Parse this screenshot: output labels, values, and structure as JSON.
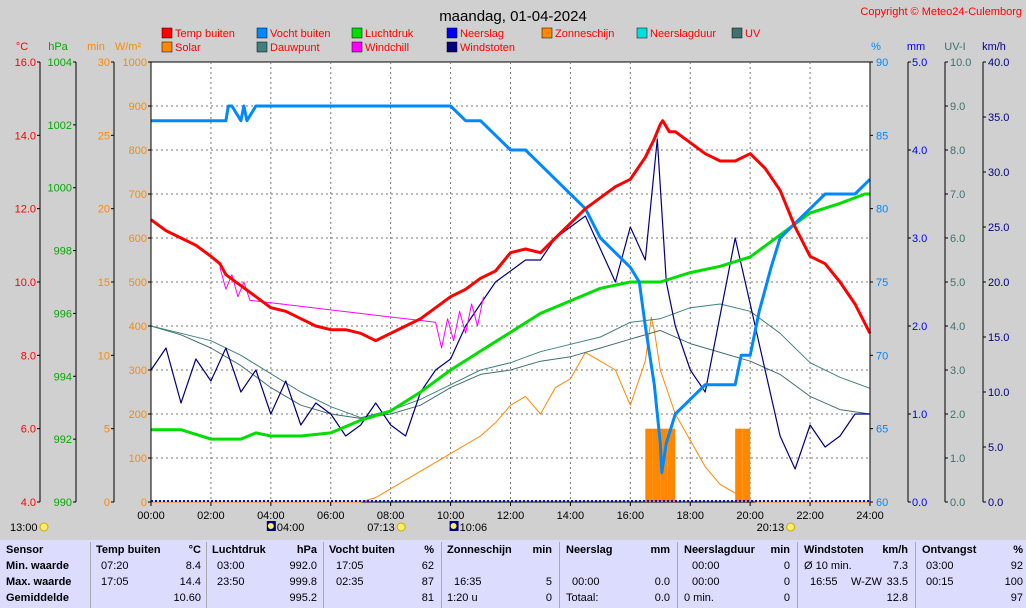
{
  "title": "maandag, 01-04-2024",
  "copyright": "Copyright © Meteo24-Culemborg",
  "colors": {
    "temp": "#ff0000",
    "vocht": "#0088ff",
    "luchtdruk": "#00dd00",
    "neerslag": "#0000ff",
    "zonneschijn": "#ff8800",
    "neerslagduur": "#00e0e0",
    "uv": "#407070",
    "solar": "#ff8800",
    "dauwpunt": "#408080",
    "windchill": "#ff00ff",
    "windstoten": "#000080"
  },
  "legend": [
    {
      "label": "Temp buiten",
      "color": "#ff0000"
    },
    {
      "label": "Vocht buiten",
      "color": "#0088ff"
    },
    {
      "label": "Luchtdruk",
      "color": "#00dd00"
    },
    {
      "label": "Neerslag",
      "color": "#0000ff"
    },
    {
      "label": "Zonneschijn",
      "color": "#ff8800"
    },
    {
      "label": "Neerslagduur",
      "color": "#00e0e0"
    },
    {
      "label": "UV",
      "color": "#407070"
    },
    {
      "label": "Solar",
      "color": "#ff8800"
    },
    {
      "label": "Dauwpunt",
      "color": "#408080"
    },
    {
      "label": "Windchill",
      "color": "#ff00ff"
    },
    {
      "label": "Windstoten",
      "color": "#000080"
    }
  ],
  "axes_left": [
    {
      "unit": "°C",
      "color": "#ff0000",
      "ticks": [
        "16.0",
        "14.0",
        "12.0",
        "10.0",
        "8.0",
        "6.0",
        "4.0"
      ]
    },
    {
      "unit": "hPa",
      "color": "#00aa00",
      "ticks": [
        "1004",
        "1002",
        "1000",
        "998",
        "996",
        "994",
        "992",
        "990"
      ]
    },
    {
      "unit": "min",
      "color": "#ff8800",
      "ticks": [
        "30",
        "25",
        "20",
        "15",
        "10",
        "5",
        "0"
      ]
    },
    {
      "unit": "W/m²",
      "color": "#ff8800",
      "ticks": [
        "1000",
        "900",
        "800",
        "700",
        "600",
        "500",
        "400",
        "300",
        "200",
        "100",
        "0"
      ]
    }
  ],
  "axes_right": [
    {
      "unit": "%",
      "color": "#0088ff",
      "ticks": [
        "90",
        "85",
        "80",
        "75",
        "70",
        "65",
        "60"
      ]
    },
    {
      "unit": "mm",
      "color": "#0000ff",
      "ticks": [
        "5.0",
        "4.0",
        "3.0",
        "2.0",
        "1.0",
        "0.0"
      ]
    },
    {
      "unit": "UV-I",
      "color": "#407070",
      "ticks": [
        "10.0",
        "9.0",
        "8.0",
        "7.0",
        "6.0",
        "5.0",
        "4.0",
        "3.0",
        "2.0",
        "1.0",
        "0.0"
      ]
    },
    {
      "unit": "km/h",
      "color": "#000080",
      "ticks": [
        "40.0",
        "35.0",
        "30.0",
        "25.0",
        "20.0",
        "15.0",
        "10.0",
        "5.0",
        "0.0"
      ]
    }
  ],
  "x_ticks": [
    "00:00",
    "02:00",
    "04:00",
    "06:00",
    "08:00",
    "10:00",
    "12:00",
    "14:00",
    "16:00",
    "18:00",
    "20:00",
    "22:00",
    "24:00"
  ],
  "sun_events": [
    {
      "time": "13:00",
      "kind": "moonset"
    },
    {
      "time": "04:00",
      "kind": "moonrise"
    },
    {
      "time": "07:13",
      "kind": "sunrise"
    },
    {
      "time": "10:06",
      "kind": "moon"
    },
    {
      "time": "20:13",
      "kind": "sunset"
    }
  ],
  "chart_data": {
    "type": "line",
    "title": "maandag, 01-04-2024",
    "x_unit": "hours",
    "xlim": [
      0,
      24
    ],
    "series": [
      {
        "name": "Temp buiten",
        "axis": "°C",
        "ylim": [
          4,
          16
        ],
        "x": [
          0,
          0.5,
          1,
          1.5,
          2,
          2.3,
          2.5,
          3,
          3.5,
          4,
          4.5,
          5,
          5.5,
          6,
          6.5,
          7,
          7.5,
          8,
          8.5,
          9,
          9.5,
          10,
          10.5,
          11,
          11.5,
          12,
          12.5,
          13,
          13.5,
          14,
          14.5,
          15,
          15.5,
          16,
          16.5,
          16.8,
          17,
          17.08,
          17.3,
          17.5,
          18,
          18.5,
          19,
          19.5,
          20,
          20.5,
          21,
          21.5,
          22,
          22.5,
          23,
          23.5,
          24
        ],
        "y": [
          11.7,
          11.4,
          11.2,
          11,
          10.7,
          10.5,
          10.2,
          9.9,
          9.6,
          9.3,
          9.2,
          9.0,
          8.8,
          8.7,
          8.7,
          8.6,
          8.4,
          8.6,
          8.8,
          9.0,
          9.3,
          9.6,
          9.8,
          10.1,
          10.3,
          10.8,
          10.9,
          10.8,
          11.2,
          11.6,
          12.0,
          12.3,
          12.6,
          12.8,
          13.4,
          13.9,
          14.3,
          14.4,
          14.1,
          14.1,
          13.8,
          13.5,
          13.3,
          13.3,
          13.5,
          13.1,
          12.5,
          11.5,
          10.7,
          10.5,
          10.0,
          9.4,
          8.6
        ]
      },
      {
        "name": "Vocht buiten",
        "axis": "%",
        "ylim": [
          60,
          90
        ],
        "x": [
          0,
          1,
          2,
          2.5,
          2.58,
          2.7,
          3,
          3.1,
          3.2,
          3.5,
          4,
          5,
          6,
          7,
          8,
          9,
          10,
          10.5,
          11,
          11.5,
          12,
          12.5,
          13,
          13.5,
          14,
          14.5,
          15,
          15.5,
          16,
          16.3,
          16.5,
          16.8,
          17,
          17.05,
          17.2,
          17.5,
          18,
          18.5,
          19,
          19.5,
          19.7,
          20,
          20.3,
          20.7,
          21,
          21.5,
          22,
          22.5,
          23,
          23.5,
          24
        ],
        "y": [
          86,
          86,
          86,
          86,
          87,
          87,
          86,
          87,
          86,
          87,
          87,
          87,
          87,
          87,
          87,
          87,
          87,
          86,
          86,
          85,
          84,
          84,
          83,
          82,
          81,
          80,
          78,
          77,
          76,
          75,
          72,
          68,
          64,
          62,
          64,
          66,
          67,
          68,
          68,
          68,
          70,
          70,
          73,
          76,
          78,
          79,
          80,
          81,
          81,
          81,
          82
        ]
      },
      {
        "name": "Luchtdruk",
        "axis": "hPa",
        "ylim": [
          990,
          1004
        ],
        "x": [
          0,
          1,
          2,
          3,
          3.5,
          4,
          5,
          6,
          7,
          8,
          9,
          10,
          11,
          11.5,
          12,
          13,
          14,
          15,
          16,
          17,
          18,
          19,
          20,
          21,
          22,
          23,
          23.83,
          24
        ],
        "y": [
          992.3,
          992.3,
          992.0,
          992.0,
          992.2,
          992.1,
          992.1,
          992.2,
          992.6,
          992.9,
          993.5,
          994.2,
          994.8,
          995.1,
          995.4,
          996.0,
          996.4,
          996.8,
          997.0,
          997.0,
          997.3,
          997.5,
          997.8,
          998.5,
          999.2,
          999.5,
          999.8,
          999.8
        ]
      },
      {
        "name": "Dauwpunt",
        "axis": "°C",
        "ylim": [
          4,
          16
        ],
        "x": [
          0,
          1,
          2,
          3,
          4,
          5,
          6,
          7,
          8,
          9,
          10,
          11,
          12,
          13,
          14,
          15,
          16,
          17,
          18,
          19,
          20,
          21,
          22,
          23,
          24
        ],
        "y": [
          8.8,
          8.6,
          8.4,
          8.0,
          7.5,
          7.0,
          6.6,
          6.3,
          6.5,
          6.8,
          7.2,
          7.6,
          7.8,
          8.1,
          8.3,
          8.5,
          8.9,
          9.0,
          9.3,
          9.4,
          9.2,
          8.6,
          7.8,
          7.4,
          7.1
        ]
      },
      {
        "name": "Windchill",
        "axis": "°C",
        "ylim": [
          4,
          16
        ],
        "x": [
          2.3,
          2.5,
          2.7,
          2.9,
          3.1,
          3.3,
          9.5,
          9.7,
          9.9,
          10.1,
          10.3,
          10.5,
          10.7,
          10.9,
          11.1
        ],
        "y": [
          10.4,
          9.8,
          10.2,
          9.6,
          10.0,
          9.5,
          8.9,
          8.2,
          9.0,
          8.4,
          9.2,
          8.6,
          9.4,
          8.8,
          9.6
        ]
      },
      {
        "name": "Solar",
        "axis": "W/m²",
        "ylim": [
          0,
          1000
        ],
        "x": [
          0,
          6,
          7,
          7.5,
          8,
          9,
          10,
          11,
          11.5,
          12,
          12.5,
          13,
          13.5,
          14,
          14.5,
          15,
          15.5,
          16,
          16.5,
          16.7,
          16.8,
          17,
          17.2,
          17.5,
          18,
          18.5,
          19,
          19.5,
          20,
          20.2,
          24
        ],
        "y": [
          0,
          0,
          0,
          10,
          30,
          70,
          110,
          150,
          180,
          220,
          240,
          200,
          260,
          280,
          340,
          320,
          300,
          220,
          320,
          420,
          390,
          300,
          260,
          200,
          140,
          80,
          40,
          20,
          5,
          0,
          0
        ]
      },
      {
        "name": "UV",
        "axis": "UV-I",
        "ylim": [
          0,
          10
        ],
        "x": [
          0,
          1,
          2,
          3,
          4,
          5,
          6,
          7,
          8,
          9,
          10,
          11,
          12,
          13,
          14,
          15,
          16,
          17,
          18,
          19,
          20,
          21,
          22,
          23,
          24
        ],
        "y": [
          4.0,
          3.8,
          3.5,
          3.1,
          2.6,
          2.2,
          2.0,
          1.9,
          2.0,
          2.2,
          2.6,
          2.9,
          3.0,
          3.2,
          3.3,
          3.5,
          3.7,
          3.9,
          3.6,
          3.4,
          3.2,
          2.9,
          2.4,
          2.1,
          2.0
        ]
      },
      {
        "name": "Windstoten",
        "axis": "km/h",
        "ylim": [
          0,
          40
        ],
        "x": [
          0,
          0.5,
          1,
          1.5,
          2,
          2.5,
          3,
          3.5,
          4,
          4.5,
          5,
          5.5,
          6,
          6.5,
          7,
          7.5,
          8,
          8.5,
          9,
          9.5,
          10,
          10.5,
          11,
          11.5,
          12,
          12.5,
          13,
          13.5,
          14,
          14.5,
          15,
          15.5,
          16,
          16.5,
          16.9,
          17.2,
          17.5,
          18,
          18.5,
          19,
          19.5,
          20,
          20.5,
          21,
          21.5,
          22,
          22.5,
          23,
          23.5,
          24
        ],
        "y": [
          12,
          14,
          9,
          13,
          11,
          14,
          10,
          12,
          8,
          11,
          7,
          9,
          8,
          6,
          7,
          9,
          7,
          6,
          10,
          12,
          13,
          16,
          18,
          20,
          21,
          22,
          22,
          24,
          25,
          26,
          23,
          20,
          25,
          22,
          33,
          20,
          16,
          12,
          10,
          17,
          24,
          18,
          12,
          6,
          3,
          7,
          5,
          6,
          8,
          8
        ]
      },
      {
        "name": "Zonneschijn",
        "axis": "min",
        "type": "bar",
        "ylim": [
          0,
          30
        ],
        "x": [
          16.5,
          16.75,
          17.0,
          17.25,
          19.5,
          19.75
        ],
        "y": [
          5,
          5,
          5,
          5,
          5,
          5
        ]
      }
    ]
  },
  "stats": {
    "headers": [
      "Sensor",
      "Temp buiten",
      "°C",
      "Luchtdruk",
      "hPa",
      "Vocht buiten",
      "%",
      "Zonneschijn",
      "min",
      "Neerslag",
      "mm",
      "Neerslagduur",
      "min",
      "Windstoten",
      "km/h",
      "Ontvangst",
      "%"
    ],
    "row_labels": [
      "Min. waarde",
      "Max. waarde",
      "Gemiddelde"
    ],
    "temp": {
      "min_time": "07:20",
      "min": "8.4",
      "max_time": "17:05",
      "max": "14.4",
      "avg": "10.60"
    },
    "pressure": {
      "min_time": "03:00",
      "min": "992.0",
      "max_time": "23:50",
      "max": "999.8",
      "avg": "995.2"
    },
    "humidity": {
      "min_time": "17:05",
      "min": "62",
      "max_time": "02:35",
      "max": "87",
      "avg": "81"
    },
    "sunshine": {
      "max_time": "16:35",
      "max": "5",
      "avg_label": "1:20 u",
      "avg": "0"
    },
    "rain": {
      "max_time": "00:00",
      "max": "0.0",
      "total_label": "Totaal:",
      "total": "0.0"
    },
    "rainduration": {
      "min_time": "00:00",
      "min": "0",
      "max_time": "00:00",
      "max": "0",
      "avg_label": "0 min.",
      "avg": "0"
    },
    "gust": {
      "min_label": "Ø 10 min.",
      "min": "7.3",
      "max_time": "16:55",
      "max_dir": "W-ZW",
      "max": "33.5",
      "avg": "12.8"
    },
    "reception": {
      "min_time": "03:00",
      "min": "92",
      "max_time": "00:15",
      "max": "100",
      "avg": "97"
    }
  }
}
